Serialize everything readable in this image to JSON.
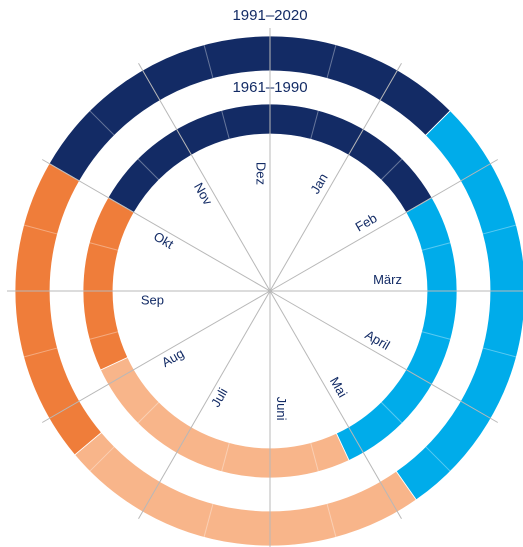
{
  "chart_data": {
    "type": "ring",
    "months": [
      "Jan",
      "Feb",
      "März",
      "April",
      "Mai",
      "Juni",
      "Juli",
      "Aug",
      "Sep",
      "Okt",
      "Nov",
      "Dez"
    ],
    "rings": [
      {
        "name": "1991–2020",
        "segments": [
          {
            "start": 300,
            "end": 405,
            "color": "#132b65"
          },
          {
            "start": 45,
            "end": 145,
            "color": "#00acea"
          },
          {
            "start": 145,
            "end": 230,
            "color": "#f8b58a"
          },
          {
            "start": 230,
            "end": 300,
            "color": "#ef7d3a"
          }
        ]
      },
      {
        "name": "1961–1990",
        "segments": [
          {
            "start": 300,
            "end": 420,
            "color": "#132b65"
          },
          {
            "start": 60,
            "end": 155,
            "color": "#00acea"
          },
          {
            "start": 155,
            "end": 245,
            "color": "#f8b58a"
          },
          {
            "start": 245,
            "end": 300,
            "color": "#ef7d3a"
          }
        ]
      }
    ]
  }
}
